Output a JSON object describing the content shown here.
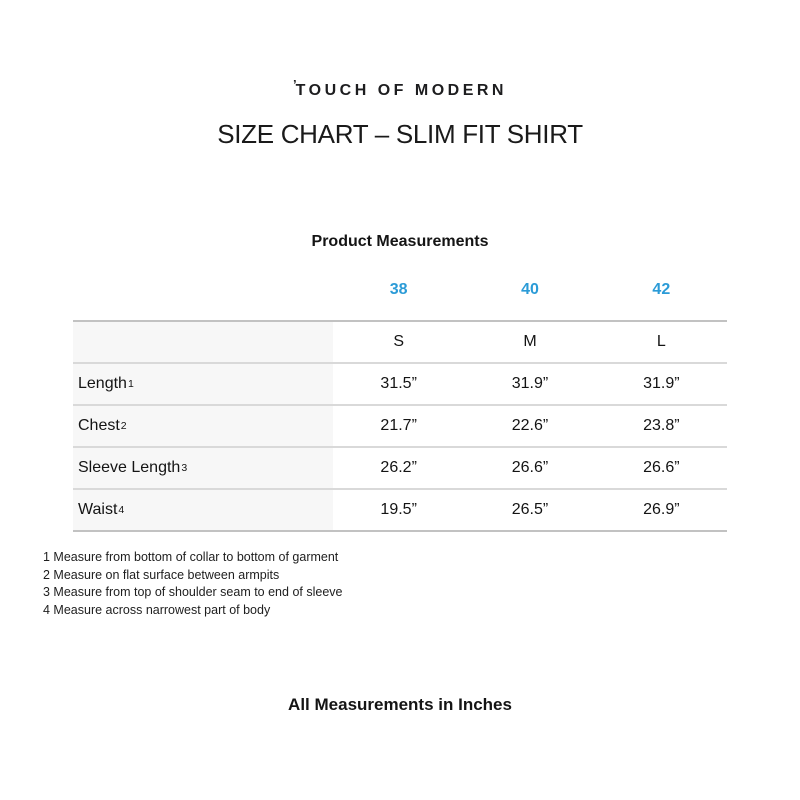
{
  "brand": {
    "mark": "’",
    "name": "TOUCH OF MODERN"
  },
  "page_title": "SIZE CHART – SLIM FIT SHIRT",
  "table": {
    "caption": "Product Measurements",
    "size_numbers": [
      "38",
      "40",
      "42"
    ],
    "size_labels": [
      "S",
      "M",
      "L"
    ],
    "rows": [
      {
        "label": "Length",
        "sup": "1",
        "values": [
          "31.5”",
          "31.9”",
          "31.9”"
        ]
      },
      {
        "label": "Chest",
        "sup": "2",
        "values": [
          "21.7”",
          "22.6”",
          "23.8”"
        ]
      },
      {
        "label": "Sleeve Length",
        "sup": "3",
        "values": [
          "26.2”",
          "26.6”",
          "26.6”"
        ]
      },
      {
        "label": "Waist",
        "sup": "4",
        "values": [
          "19.5”",
          "26.5”",
          "26.9”"
        ]
      }
    ]
  },
  "footnotes": [
    "1 Measure from bottom of collar to bottom of garment",
    "2 Measure on flat surface between armpits",
    "3 Measure from top of shoulder seam to end of sleeve",
    "4 Measure across narrowest part of body"
  ],
  "footer_note": "All Measurements in Inches",
  "colors": {
    "accent_blue": "#2b9bd7",
    "label_column_bg": "#f7f7f7",
    "table_border": "#c2c2c2"
  },
  "chart_data": {
    "type": "table",
    "title": "Product Measurements",
    "size_numbers": [
      38,
      40,
      42
    ],
    "columns": [
      "",
      "S",
      "M",
      "L"
    ],
    "rows": [
      [
        "Length",
        31.5,
        31.9,
        31.9
      ],
      [
        "Chest",
        21.7,
        22.6,
        23.8
      ],
      [
        "Sleeve Length",
        26.2,
        26.6,
        26.6
      ],
      [
        "Waist",
        19.5,
        26.5,
        26.9
      ]
    ],
    "units": "inches"
  }
}
